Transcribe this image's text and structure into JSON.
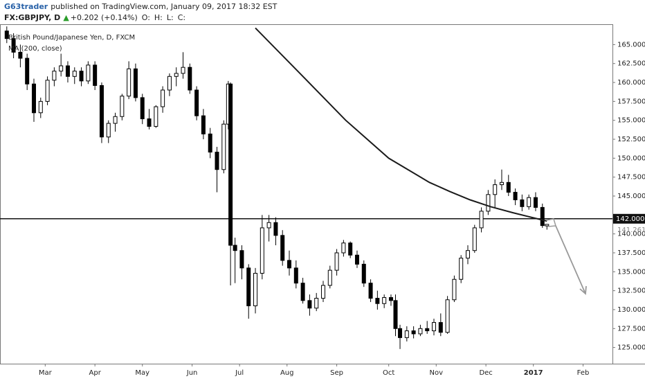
{
  "header": {
    "author": "G63trader",
    "published": "published on TradingView.com, January 09, 2017 18:32 EST",
    "symbol": "FX:GBPJPY, D",
    "change": "+0.202 (+0.14%)",
    "open_label": "O:",
    "high_label": "H:",
    "low_label": "L:",
    "close_label": "C:"
  },
  "chart_data": {
    "type": "candlestick",
    "title": "British Pound/Japanese Yen, D, FXCM",
    "up_color": "#ffffff",
    "down_color": "#000000",
    "border_color": "#000000",
    "candles": [
      [
        0,
        166.8,
        167.4,
        165.2,
        165.8
      ],
      [
        3,
        165.8,
        166.5,
        163.2,
        164.0
      ],
      [
        6,
        164.0,
        165.0,
        162.0,
        163.2
      ],
      [
        9,
        163.2,
        163.8,
        159.0,
        159.8
      ],
      [
        12,
        159.8,
        160.5,
        154.8,
        156.0
      ],
      [
        15,
        156.0,
        158.0,
        155.3,
        157.5
      ],
      [
        18,
        157.5,
        160.8,
        157.0,
        160.3
      ],
      [
        21,
        160.3,
        162.0,
        159.5,
        161.5
      ],
      [
        24,
        161.5,
        163.8,
        160.8,
        162.2
      ],
      [
        27,
        162.2,
        162.8,
        160.0,
        160.8
      ],
      [
        30,
        160.8,
        162.0,
        159.8,
        161.5
      ],
      [
        33,
        161.5,
        162.0,
        159.5,
        160.2
      ],
      [
        36,
        160.2,
        162.8,
        159.8,
        162.3
      ],
      [
        39,
        162.3,
        162.8,
        159.0,
        159.6
      ],
      [
        42,
        159.6,
        160.0,
        152.0,
        152.8
      ],
      [
        45,
        152.8,
        155.0,
        152.0,
        154.6
      ],
      [
        48,
        154.6,
        156.0,
        153.5,
        155.5
      ],
      [
        51,
        155.5,
        158.5,
        155.0,
        158.2
      ],
      [
        54,
        158.2,
        162.8,
        157.8,
        161.8
      ],
      [
        57,
        161.8,
        162.5,
        157.5,
        158.0
      ],
      [
        60,
        158.0,
        158.5,
        154.5,
        155.2
      ],
      [
        63,
        155.2,
        156.5,
        153.8,
        154.2
      ],
      [
        66,
        154.2,
        157.0,
        154.0,
        156.8
      ],
      [
        69,
        156.8,
        159.5,
        156.0,
        159.0
      ],
      [
        72,
        159.0,
        161.2,
        158.2,
        160.8
      ],
      [
        75,
        160.8,
        162.0,
        159.5,
        161.2
      ],
      [
        78,
        161.2,
        164.0,
        160.5,
        162.0
      ],
      [
        81,
        162.0,
        162.5,
        158.5,
        159.0
      ],
      [
        84,
        159.0,
        159.5,
        155.0,
        155.6
      ],
      [
        87,
        155.6,
        156.5,
        152.5,
        153.2
      ],
      [
        90,
        153.2,
        154.0,
        150.0,
        150.8
      ],
      [
        93,
        150.8,
        151.5,
        145.5,
        148.5
      ],
      [
        96,
        148.5,
        155.0,
        148.0,
        154.5
      ],
      [
        98,
        154.5,
        160.2,
        153.8,
        159.8
      ],
      [
        99,
        159.8,
        160.0,
        133.2,
        138.5
      ],
      [
        101,
        138.5,
        139.5,
        133.5,
        137.8
      ],
      [
        104,
        137.8,
        138.5,
        134.0,
        135.5
      ],
      [
        107,
        135.5,
        136.0,
        128.8,
        130.5
      ],
      [
        110,
        130.5,
        135.5,
        129.5,
        134.8
      ],
      [
        113,
        134.8,
        142.5,
        134.0,
        140.8
      ],
      [
        116,
        140.8,
        142.5,
        139.0,
        141.5
      ],
      [
        119,
        141.5,
        142.2,
        138.5,
        139.8
      ],
      [
        122,
        139.8,
        140.5,
        135.8,
        136.5
      ],
      [
        125,
        136.5,
        137.8,
        134.5,
        135.5
      ],
      [
        128,
        135.5,
        136.5,
        132.8,
        133.5
      ],
      [
        131,
        133.5,
        134.2,
        130.8,
        131.2
      ],
      [
        134,
        131.2,
        132.0,
        129.2,
        130.2
      ],
      [
        137,
        130.2,
        132.2,
        129.8,
        131.5
      ],
      [
        140,
        131.5,
        133.8,
        131.0,
        133.2
      ],
      [
        143,
        133.2,
        135.8,
        132.8,
        135.2
      ],
      [
        146,
        135.2,
        138.0,
        134.5,
        137.5
      ],
      [
        149,
        137.5,
        139.2,
        137.0,
        138.8
      ],
      [
        152,
        138.8,
        139.0,
        136.8,
        137.2
      ],
      [
        155,
        137.2,
        137.8,
        135.5,
        136.0
      ],
      [
        158,
        136.0,
        136.5,
        133.0,
        133.5
      ],
      [
        161,
        133.5,
        134.0,
        131.0,
        131.5
      ],
      [
        164,
        131.5,
        132.5,
        130.0,
        130.8
      ],
      [
        167,
        130.8,
        132.0,
        130.2,
        131.6
      ],
      [
        170,
        131.6,
        132.0,
        130.5,
        131.2
      ],
      [
        172,
        131.2,
        132.0,
        126.5,
        127.5
      ],
      [
        174,
        127.5,
        128.0,
        124.8,
        126.3
      ],
      [
        177,
        126.3,
        127.8,
        125.8,
        127.2
      ],
      [
        180,
        127.2,
        127.8,
        126.2,
        126.8
      ],
      [
        183,
        126.8,
        128.0,
        126.5,
        127.5
      ],
      [
        186,
        127.5,
        128.5,
        126.8,
        127.2
      ],
      [
        189,
        127.2,
        128.8,
        126.6,
        128.3
      ],
      [
        192,
        128.3,
        129.5,
        126.5,
        127.0
      ],
      [
        195,
        127.0,
        131.8,
        126.8,
        131.3
      ],
      [
        198,
        131.3,
        134.5,
        131.0,
        134.0
      ],
      [
        201,
        134.0,
        137.2,
        133.5,
        136.8
      ],
      [
        204,
        136.8,
        138.5,
        136.0,
        137.8
      ],
      [
        207,
        137.8,
        141.2,
        137.5,
        140.8
      ],
      [
        210,
        140.8,
        143.5,
        140.2,
        143.0
      ],
      [
        213,
        143.0,
        145.8,
        142.5,
        145.2
      ],
      [
        216,
        145.2,
        147.2,
        143.5,
        146.5
      ],
      [
        219,
        146.5,
        148.5,
        145.8,
        146.8
      ],
      [
        222,
        146.8,
        147.8,
        145.0,
        145.5
      ],
      [
        225,
        145.5,
        146.0,
        143.8,
        144.5
      ],
      [
        228,
        144.5,
        145.2,
        143.0,
        143.6
      ],
      [
        231,
        143.6,
        145.2,
        143.2,
        144.8
      ],
      [
        234,
        144.8,
        145.5,
        143.0,
        143.5
      ],
      [
        237,
        143.5,
        144.0,
        140.8,
        141.1
      ],
      [
        239,
        141.059,
        141.284,
        140.561,
        141.261
      ]
    ],
    "ma": {
      "name": "MA (200, close)",
      "color": "#1a1a1a",
      "x": [
        110,
        132,
        150,
        169,
        187,
        196,
        205,
        214,
        224,
        232,
        239
      ],
      "values": [
        167.2,
        160.5,
        155.0,
        150.0,
        146.8,
        145.6,
        144.5,
        143.6,
        142.8,
        142.2,
        141.7
      ]
    },
    "hline": {
      "value": 142,
      "label": "142.000"
    },
    "xlim": [
      -3,
      268
    ],
    "xticks": [
      {
        "value": 17,
        "label": "Mar"
      },
      {
        "value": 39,
        "label": "Apr"
      },
      {
        "value": 60,
        "label": "May"
      },
      {
        "value": 82,
        "label": "Jun"
      },
      {
        "value": 103,
        "label": "Jul"
      },
      {
        "value": 124,
        "label": "Aug"
      },
      {
        "value": 146,
        "label": "Sep"
      },
      {
        "value": 169,
        "label": "Oct"
      },
      {
        "value": 190,
        "label": "Nov"
      },
      {
        "value": 212,
        "label": "Dec"
      },
      {
        "value": 233,
        "label": "2017"
      },
      {
        "value": 255,
        "label": "Feb"
      }
    ],
    "ylim": [
      122.86,
      167.69
    ],
    "yticks": [
      {
        "value": 165,
        "label": "165.000"
      },
      {
        "value": 162.5,
        "label": "162.500"
      },
      {
        "value": 160,
        "label": "160.000"
      },
      {
        "value": 157.5,
        "label": "157.500"
      },
      {
        "value": 155,
        "label": "155.000"
      },
      {
        "value": 152.5,
        "label": "152.500"
      },
      {
        "value": 150,
        "label": "150.000"
      },
      {
        "value": 147.5,
        "label": "147.500"
      },
      {
        "value": 145,
        "label": "145.000"
      },
      {
        "value": 140,
        "label": "140.000"
      },
      {
        "value": 137.5,
        "label": "137.500"
      },
      {
        "value": 135,
        "label": "135.000"
      },
      {
        "value": 132.5,
        "label": "132.500"
      },
      {
        "value": 130,
        "label": "130.000"
      },
      {
        "value": 127.5,
        "label": "127.500"
      },
      {
        "value": 125,
        "label": "125.000"
      }
    ],
    "last_price_label": "141.261"
  }
}
